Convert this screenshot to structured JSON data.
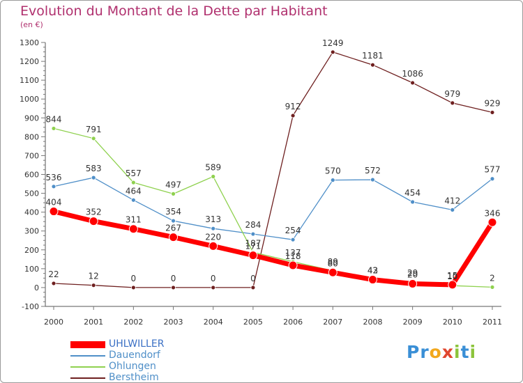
{
  "title": "Evolution du Montant de la Dette par Habitant",
  "subtitle": "(en €)",
  "logo": {
    "text": "Proxiti",
    "letters": [
      {
        "ch": "P",
        "color": "#3a8fd6"
      },
      {
        "ch": "r",
        "color": "#3a8fd6"
      },
      {
        "ch": "o",
        "color": "#f2a81d"
      },
      {
        "ch": "x",
        "color": "#e0462e"
      },
      {
        "ch": "i",
        "color": "#8cc43c"
      },
      {
        "ch": "t",
        "color": "#3a8fd6"
      },
      {
        "ch": "i",
        "color": "#8cc43c"
      }
    ]
  },
  "chart_data": {
    "type": "line",
    "title": "Evolution du Montant de la Dette par Habitant",
    "subtitle": "(en €)",
    "xlabel": "",
    "ylabel": "",
    "ylim": [
      -100,
      1300
    ],
    "yticks": [
      -100,
      0,
      100,
      200,
      300,
      400,
      500,
      600,
      700,
      800,
      900,
      1000,
      1100,
      1200,
      1300
    ],
    "categories": [
      "2000",
      "2001",
      "2002",
      "2003",
      "2004",
      "2005",
      "2006",
      "2007",
      "2008",
      "2009",
      "2010",
      "2011"
    ],
    "grid": false,
    "legend_position": "bottom-left",
    "series": [
      {
        "name": "UHLWILLER",
        "color": "#ff0000",
        "values": [
          404,
          352,
          311,
          267,
          220,
          171,
          118,
          80,
          42,
          20,
          15,
          346
        ]
      },
      {
        "name": "Dauendorf",
        "color": "#4f8fc8",
        "values": [
          536,
          583,
          464,
          354,
          313,
          284,
          254,
          570,
          572,
          454,
          412,
          577
        ]
      },
      {
        "name": "Ohlungen",
        "color": "#8fd14f",
        "values": [
          844,
          791,
          557,
          497,
          589,
          187,
          137,
          89,
          43,
          29,
          10,
          2
        ]
      },
      {
        "name": "Berstheim",
        "color": "#6e1f1f",
        "values": [
          22,
          12,
          0,
          0,
          0,
          0,
          912,
          1249,
          1181,
          1086,
          979,
          929
        ]
      }
    ]
  }
}
